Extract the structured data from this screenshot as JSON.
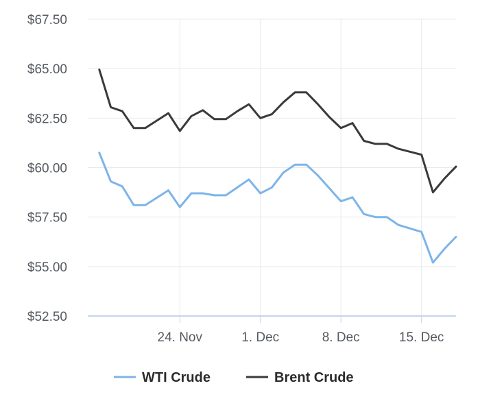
{
  "chart_data": {
    "type": "line",
    "title": "",
    "xlabel": "",
    "ylabel": "",
    "ylim": [
      52.5,
      67.5
    ],
    "y_ticks": [
      "$52.50",
      "$55.00",
      "$57.50",
      "$60.00",
      "$62.50",
      "$65.00",
      "$67.50"
    ],
    "y_tick_values": [
      52.5,
      55.0,
      57.5,
      60.0,
      62.5,
      65.0,
      67.5
    ],
    "x_ticks": [
      "24. Nov",
      "1. Dec",
      "8. Dec",
      "15. Dec"
    ],
    "x_tick_values": [
      "2025-11-24",
      "2025-12-01",
      "2025-12-08",
      "2025-12-15"
    ],
    "xlim": [
      "2025-11-16",
      "2025-12-18"
    ],
    "grid": true,
    "legend_position": "bottom-center",
    "x": [
      "2025-11-17",
      "2025-11-18",
      "2025-11-19",
      "2025-11-20",
      "2025-11-21",
      "2025-11-23",
      "2025-11-24",
      "2025-11-25",
      "2025-11-26",
      "2025-11-27",
      "2025-11-28",
      "2025-11-29",
      "2025-11-30",
      "2025-12-01",
      "2025-12-02",
      "2025-12-03",
      "2025-12-04",
      "2025-12-05",
      "2025-12-06",
      "2025-12-07",
      "2025-12-08",
      "2025-12-09",
      "2025-12-10",
      "2025-12-11",
      "2025-12-12",
      "2025-12-13",
      "2025-12-15",
      "2025-12-16",
      "2025-12-17",
      "2025-12-18"
    ],
    "series": [
      {
        "name": "WTI Crude",
        "color": "#7db4ea",
        "values": [
          60.75,
          59.3,
          59.05,
          58.1,
          58.1,
          58.85,
          58.0,
          58.7,
          58.7,
          58.6,
          58.6,
          59.0,
          59.4,
          58.7,
          59.0,
          59.75,
          60.15,
          60.15,
          59.6,
          58.95,
          58.3,
          58.5,
          57.65,
          57.5,
          57.5,
          57.1,
          56.75,
          55.2,
          55.9,
          56.5
        ]
      },
      {
        "name": "Brent Crude",
        "color": "#3a3a3a",
        "values": [
          64.95,
          63.05,
          62.85,
          62.0,
          62.0,
          62.75,
          61.85,
          62.6,
          62.9,
          62.45,
          62.45,
          62.85,
          63.2,
          62.5,
          62.7,
          63.3,
          63.8,
          63.8,
          63.2,
          62.55,
          62.0,
          62.25,
          61.35,
          61.2,
          61.2,
          60.95,
          60.65,
          58.75,
          59.45,
          60.05
        ]
      }
    ]
  }
}
